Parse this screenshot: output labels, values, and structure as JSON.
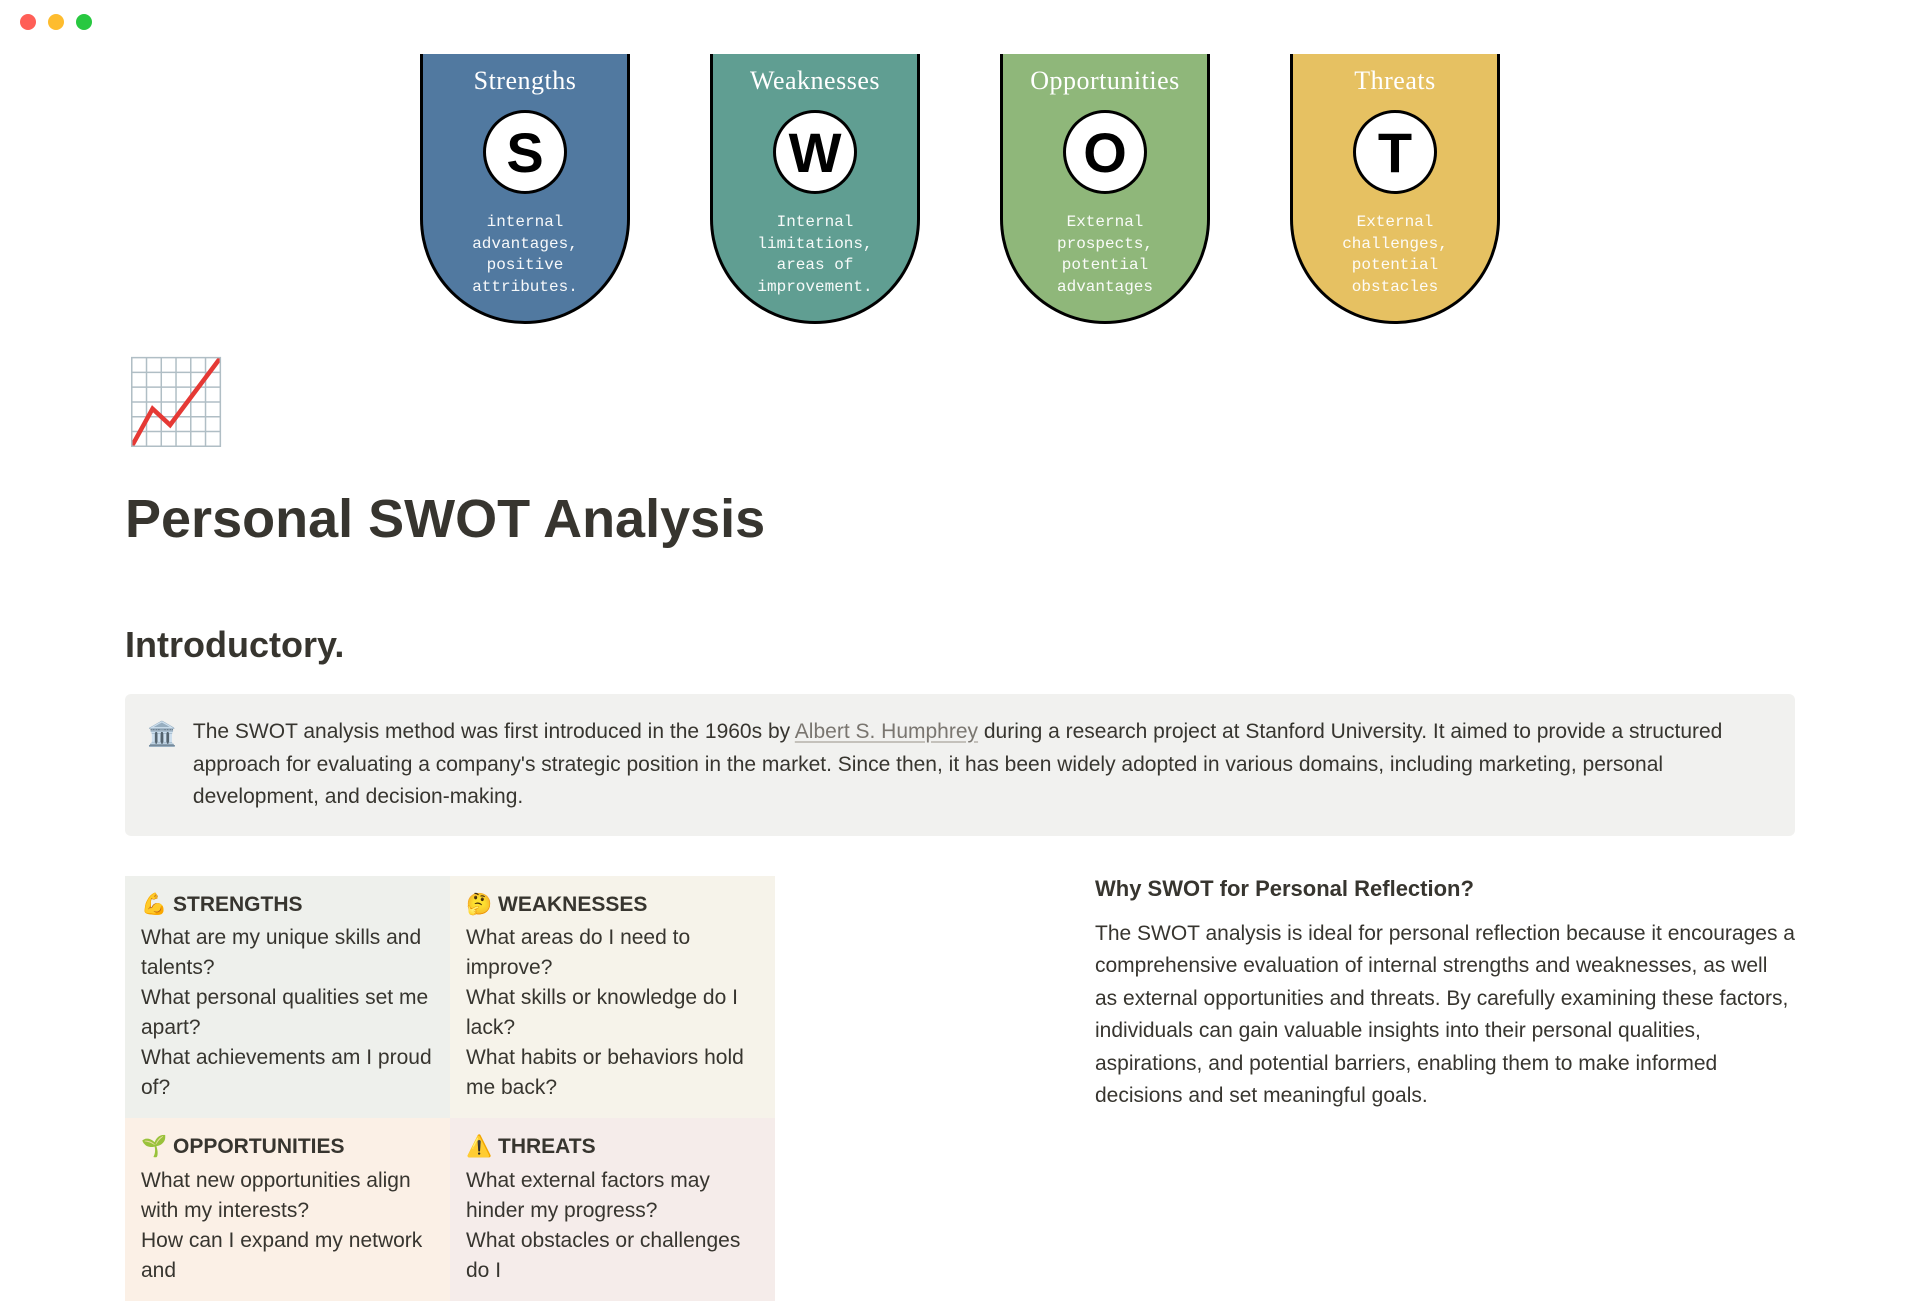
{
  "window": {
    "traffic_colors": {
      "red": "#ff5f57",
      "yellow": "#febc2e",
      "green": "#28c840"
    }
  },
  "banner": {
    "cards": [
      {
        "title": "Strengths",
        "letter": "S",
        "desc": "internal advantages, positive attributes.",
        "bg": "#5179a0"
      },
      {
        "title": "Weaknesses",
        "letter": "W",
        "desc": "Internal limitations, areas of improvement.",
        "bg": "#609e92"
      },
      {
        "title": "Opportunities",
        "letter": "O",
        "desc": "External prospects, potential advantages",
        "bg": "#8fb77a"
      },
      {
        "title": "Threats",
        "letter": "T",
        "desc": "External challenges, potential obstacles",
        "bg": "#e6c162"
      }
    ]
  },
  "page": {
    "icon": "📈",
    "title": "Personal SWOT Analysis",
    "intro_heading": "Introductory."
  },
  "callout": {
    "icon": "🏛️",
    "pre": "The SWOT analysis method was first introduced in the 1960s by ",
    "link_text": "Albert S. Humphrey",
    "post": " during a research project at Stanford University. It aimed to provide a structured approach for evaluating a company's strategic position in the market. Since then, it has been widely adopted in various domains, including marketing, personal development, and decision-making."
  },
  "grid": {
    "strengths": {
      "icon": "💪",
      "label": "STRENGTHS",
      "body": "What are my unique skills and talents?\nWhat personal qualities set me apart?\nWhat achievements am I proud of?",
      "bg": "#eef0ec"
    },
    "weaknesses": {
      "icon": "🤔",
      "label": "WEAKNESSES",
      "body": "What areas do I need to improve?\nWhat skills or knowledge do I lack?\nWhat habits or behaviors hold me back?",
      "bg": "#f6f3ea"
    },
    "opportunities": {
      "icon": "🌱",
      "label": "OPPORTUNITIES",
      "body": "What new opportunities align with my interests?\nHow can I expand my network and",
      "bg": "#fbf0e6"
    },
    "threats": {
      "icon": "⚠️",
      "label": "THREATS",
      "body": "What external factors may hinder my progress?\nWhat obstacles or challenges do I",
      "bg": "#f5ecea"
    }
  },
  "right": {
    "heading": "Why SWOT for Personal Reflection?",
    "body": "The SWOT analysis is ideal for personal reflection because it encourages a comprehensive evaluation of internal strengths and weaknesses, as well as external opportunities and threats. By carefully examining these factors, individuals can gain valuable insights into their personal qualities, aspirations, and potential barriers, enabling them to make informed decisions and set meaningful goals."
  }
}
